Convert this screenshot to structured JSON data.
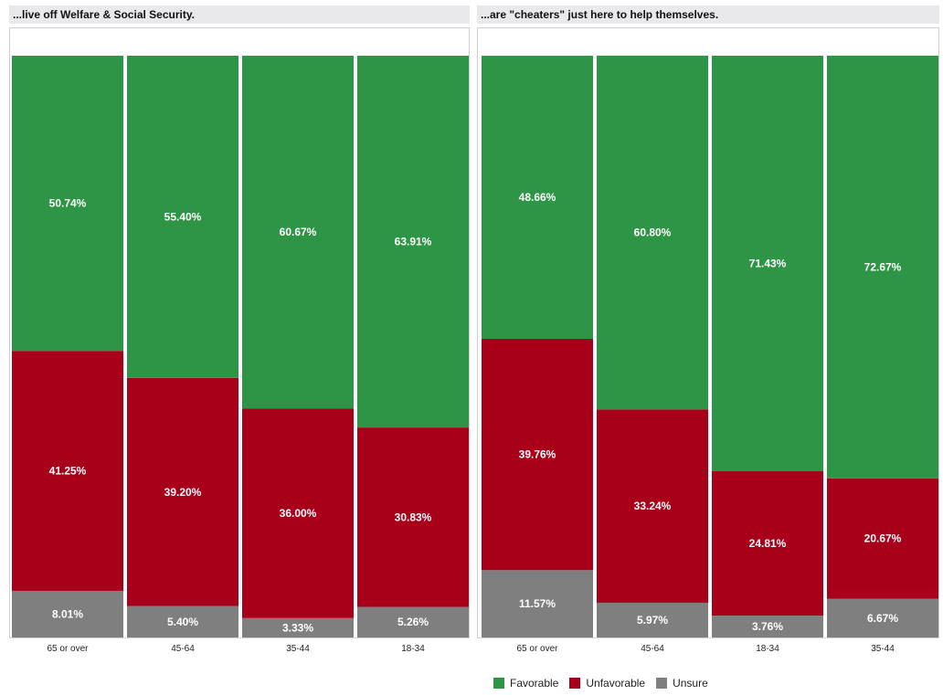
{
  "colors": {
    "favorable": "#2e9446",
    "unfavorable": "#a8001a",
    "unsure": "#7f7f7f"
  },
  "legend": [
    {
      "label": "Favorable",
      "color": "#2e9446"
    },
    {
      "label": "Unfavorable",
      "color": "#a8001a"
    },
    {
      "label": "Unsure",
      "color": "#7f7f7f"
    }
  ],
  "chart_data": [
    {
      "type": "bar",
      "stacked": true,
      "title": "...live off Welfare & Social Security.",
      "categories": [
        "65 or over",
        "45-64",
        "35-44",
        "18-34"
      ],
      "ylim": [
        0,
        100
      ],
      "series": [
        {
          "name": "Unsure",
          "values": [
            8.01,
            5.4,
            3.33,
            5.26
          ],
          "labels": [
            "8.01%",
            "5.40%",
            "3.33%",
            "5.26%"
          ]
        },
        {
          "name": "Unfavorable",
          "values": [
            41.25,
            39.2,
            36.0,
            30.83
          ],
          "labels": [
            "41.25%",
            "39.20%",
            "36.00%",
            "30.83%"
          ]
        },
        {
          "name": "Favorable",
          "values": [
            50.74,
            55.4,
            60.67,
            63.91
          ],
          "labels": [
            "50.74%",
            "55.40%",
            "60.67%",
            "63.91%"
          ]
        }
      ]
    },
    {
      "type": "bar",
      "stacked": true,
      "title": "...are \"cheaters\" just here to help themselves.",
      "categories": [
        "65 or over",
        "45-64",
        "18-34",
        "35-44"
      ],
      "ylim": [
        0,
        100
      ],
      "series": [
        {
          "name": "Unsure",
          "values": [
            11.57,
            5.97,
            3.76,
            6.67
          ],
          "labels": [
            "11.57%",
            "5.97%",
            "3.76%",
            "6.67%"
          ]
        },
        {
          "name": "Unfavorable",
          "values": [
            39.76,
            33.24,
            24.81,
            20.67
          ],
          "labels": [
            "39.76%",
            "33.24%",
            "24.81%",
            "20.67%"
          ]
        },
        {
          "name": "Favorable",
          "values": [
            48.66,
            60.8,
            71.43,
            72.67
          ],
          "labels": [
            "48.66%",
            "60.80%",
            "71.43%",
            "72.67%"
          ]
        }
      ]
    }
  ]
}
